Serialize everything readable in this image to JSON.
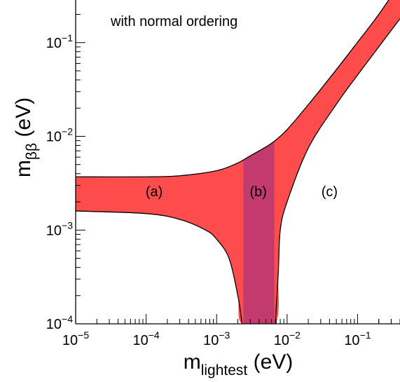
{
  "chart_data": {
    "type": "area",
    "annotation": "with normal ordering",
    "xlabel": {
      "base": "m",
      "subscript": "lightest",
      "unit": "(eV)"
    },
    "ylabel": {
      "base": "m",
      "subscript": "ββ",
      "unit": "(eV)"
    },
    "x_scale": "log",
    "y_scale": "log",
    "xlim": [
      1e-05,
      0.4
    ],
    "ylim": [
      0.0001,
      0.8
    ],
    "x_ticks": [
      {
        "value": 1e-05,
        "base": "10",
        "exp": "−5"
      },
      {
        "value": 0.0001,
        "base": "10",
        "exp": "−4"
      },
      {
        "value": 0.001,
        "base": "10",
        "exp": "−3"
      },
      {
        "value": 0.01,
        "base": "10",
        "exp": "−2"
      },
      {
        "value": 0.1,
        "base": "10",
        "exp": "−1"
      }
    ],
    "y_ticks": [
      {
        "value": 0.0001,
        "base": "10",
        "exp": "−4"
      },
      {
        "value": 0.001,
        "base": "10",
        "exp": "−3"
      },
      {
        "value": 0.01,
        "base": "10",
        "exp": "−2"
      },
      {
        "value": 0.1,
        "base": "10",
        "exp": "−1"
      }
    ],
    "grid": false,
    "band": {
      "fill": "#ff4d4d",
      "edge": "#000000",
      "upper": [
        {
          "x": 1e-05,
          "y": 0.0037
        },
        {
          "x": 0.0001,
          "y": 0.0037
        },
        {
          "x": 0.0003,
          "y": 0.0038
        },
        {
          "x": 0.001,
          "y": 0.0043
        },
        {
          "x": 0.002,
          "y": 0.0052
        },
        {
          "x": 0.003,
          "y": 0.0062
        },
        {
          "x": 0.005,
          "y": 0.0077
        },
        {
          "x": 0.007,
          "y": 0.0092
        },
        {
          "x": 0.01,
          "y": 0.0118
        },
        {
          "x": 0.02,
          "y": 0.0218
        },
        {
          "x": 0.05,
          "y": 0.0515
        },
        {
          "x": 0.1,
          "y": 0.101
        },
        {
          "x": 0.2,
          "y": 0.2
        },
        {
          "x": 0.4,
          "y": 0.43
        }
      ],
      "lower": [
        {
          "x": 1e-05,
          "y": 0.0016
        },
        {
          "x": 0.0001,
          "y": 0.0015
        },
        {
          "x": 0.0003,
          "y": 0.0013
        },
        {
          "x": 0.0007,
          "y": 0.001
        },
        {
          "x": 0.001,
          "y": 0.0008
        },
        {
          "x": 0.0015,
          "y": 0.0005
        },
        {
          "x": 0.002,
          "y": 0.0002
        },
        {
          "x": 0.0023,
          "y": 0.0001
        },
        {
          "x": 0.0068,
          "y": 0.0001
        },
        {
          "x": 0.0075,
          "y": 0.00035
        },
        {
          "x": 0.008,
          "y": 0.001
        },
        {
          "x": 0.01,
          "y": 0.002
        },
        {
          "x": 0.02,
          "y": 0.0075
        },
        {
          "x": 0.05,
          "y": 0.022
        },
        {
          "x": 0.1,
          "y": 0.045
        },
        {
          "x": 0.2,
          "y": 0.09
        },
        {
          "x": 0.4,
          "y": 0.18
        }
      ]
    },
    "region_b": {
      "x_range": [
        0.0024,
        0.0066
      ],
      "fill": "#c23a6e"
    },
    "regions": [
      {
        "label": "(a)",
        "x": 0.00013,
        "y": 0.0026
      },
      {
        "label": "(b)",
        "x": 0.0039,
        "y": 0.0026
      },
      {
        "label": "(c)",
        "x": 0.04,
        "y": 0.0026
      }
    ]
  }
}
